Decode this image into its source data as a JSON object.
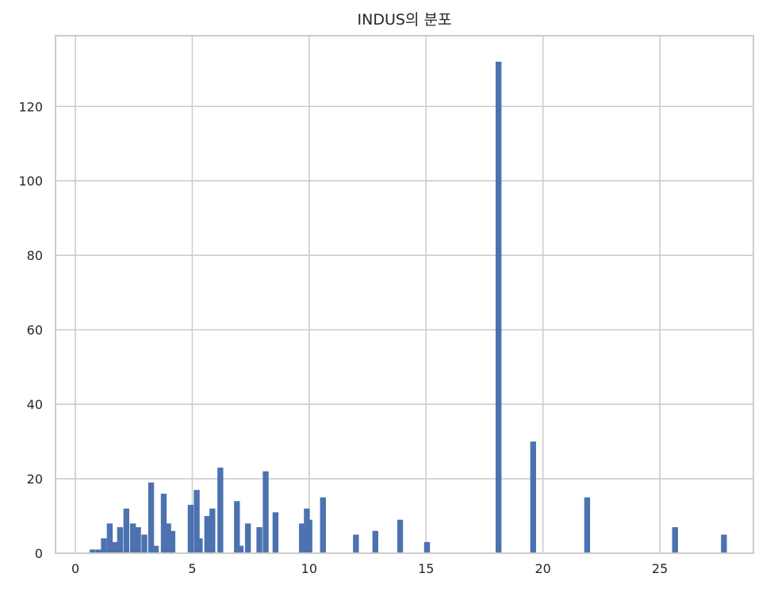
{
  "chart_data": {
    "type": "bar",
    "title": "INDUS의 분포",
    "xlabel": "",
    "ylabel": "",
    "xlim": [
      -0.85,
      29.0
    ],
    "ylim": [
      0,
      139
    ],
    "xticks": [
      0,
      5,
      10,
      15,
      20,
      25
    ],
    "yticks": [
      0,
      20,
      40,
      60,
      80,
      100,
      120
    ],
    "grid": true,
    "bar_width": 0.25,
    "colors": {
      "bar": "#4c72b0",
      "grid": "#cccccc",
      "axes": "#cccccc"
    },
    "x": [
      0.74,
      1.0,
      1.22,
      1.47,
      1.69,
      1.91,
      2.18,
      2.46,
      2.68,
      2.95,
      3.24,
      3.44,
      3.78,
      3.97,
      4.15,
      4.93,
      5.19,
      5.32,
      5.64,
      5.86,
      6.2,
      6.91,
      7.07,
      7.38,
      7.87,
      8.14,
      8.56,
      9.69,
      9.9,
      10.01,
      10.59,
      12.0,
      12.83,
      13.89,
      15.04,
      18.1,
      19.58,
      21.89,
      25.65,
      27.74
    ],
    "values": [
      1,
      1,
      4,
      8,
      3,
      7,
      12,
      8,
      7,
      5,
      19,
      2,
      16,
      8,
      6,
      13,
      17,
      4,
      10,
      12,
      23,
      14,
      2,
      8,
      7,
      22,
      11,
      8,
      12,
      9,
      15,
      5,
      6,
      9,
      3,
      132,
      30,
      15,
      7,
      5
    ]
  }
}
